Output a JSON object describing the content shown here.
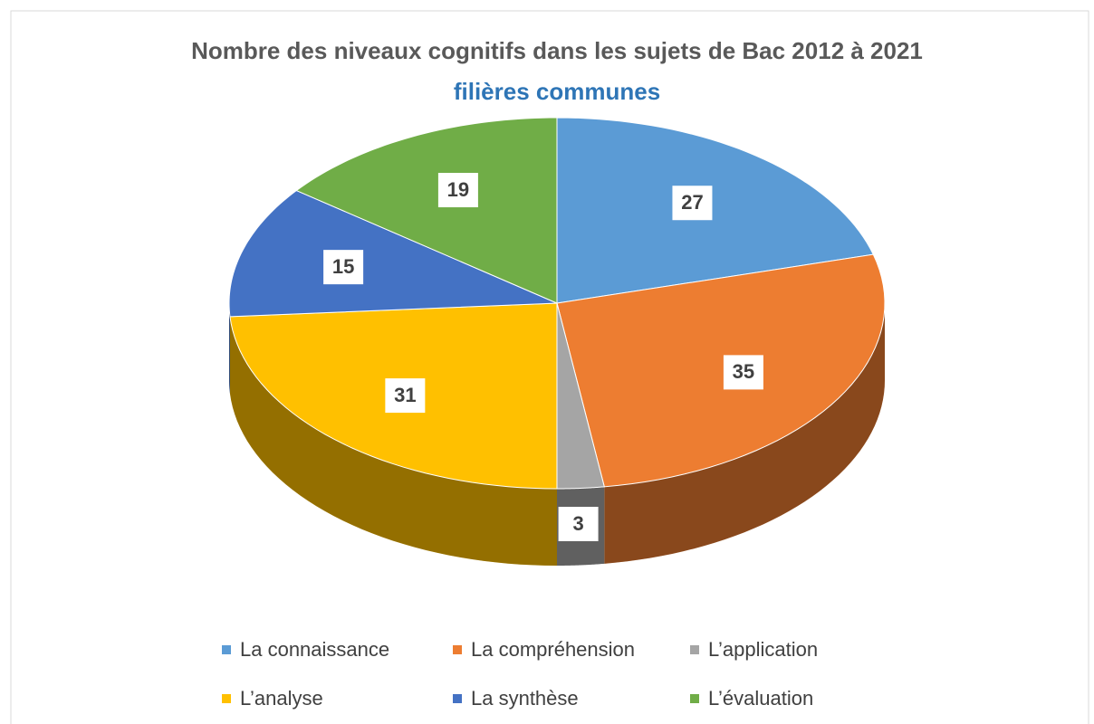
{
  "chart_data": {
    "type": "pie",
    "title": "Nombre des niveaux cognitifs dans les sujets de Bac 2012 à 2021",
    "subtitle": "filières communes",
    "categories": [
      "La connaissance",
      "La compréhension",
      "L’application",
      "L’analyse",
      "La synthèse",
      "L’évaluation"
    ],
    "values": [
      27,
      35,
      3,
      31,
      15,
      19
    ],
    "colors": [
      "#5b9bd5",
      "#ed7d31",
      "#a5a5a5",
      "#ffc000",
      "#4472c4",
      "#70ad47"
    ],
    "legend": "bottom"
  }
}
